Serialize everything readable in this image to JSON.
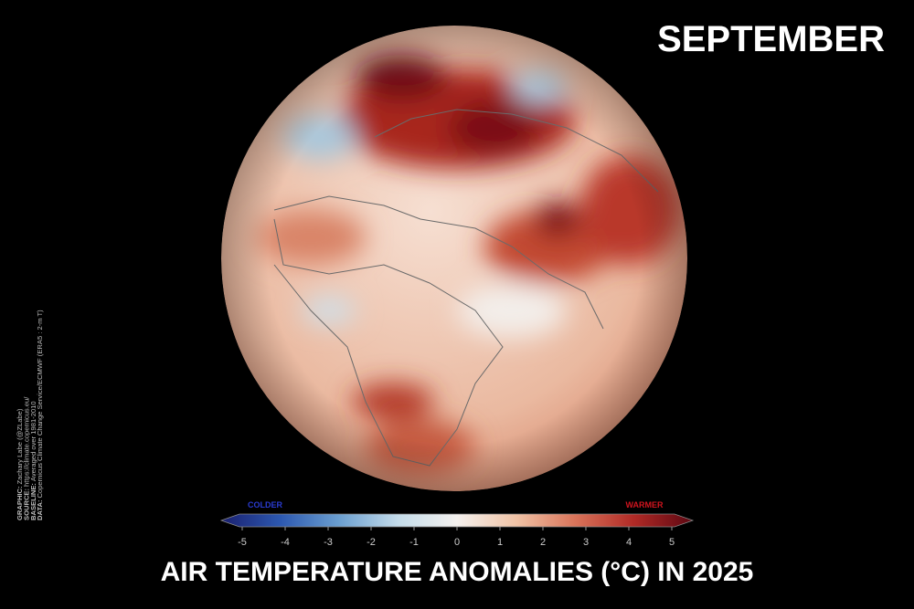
{
  "header": {
    "month": "SEPTEMBER"
  },
  "title": "AIR TEMPERATURE ANOMALIES (°C) IN 2025",
  "colorbar": {
    "low_label": "COLDER",
    "high_label": "WARMER",
    "lim": [
      -5,
      5
    ],
    "ticks": [
      -5,
      -4,
      -3,
      -2,
      -1,
      0,
      1,
      2,
      3,
      4,
      5
    ],
    "colors": [
      "#1a1f6e",
      "#2c58b0",
      "#6b9fd0",
      "#c4dcea",
      "#f4f1ee",
      "#f0c3a6",
      "#d9745a",
      "#b02a26",
      "#5c0712"
    ]
  },
  "credits": [
    {
      "label": "GRAPHIC:",
      "text": "Zachary Labe (@ZLabe)"
    },
    {
      "label": "SOURCE:",
      "text": "https://climate.copernicus.eu/"
    },
    {
      "label": "BASELINE:",
      "text": "Averaged over 1981-2010"
    },
    {
      "label": "DATA:",
      "text": "Copernicus Climate Change Service/ECMWF (ERA5 : 2-m T)"
    }
  ]
}
